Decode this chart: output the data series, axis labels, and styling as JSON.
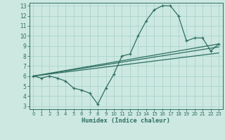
{
  "xlabel": "Humidex (Indice chaleur)",
  "bg_color": "#cce8e0",
  "line_color": "#2e6e62",
  "grid_color": "#aad4cb",
  "xlim": [
    -0.5,
    23.5
  ],
  "ylim": [
    2.7,
    13.3
  ],
  "yticks": [
    3,
    4,
    5,
    6,
    7,
    8,
    9,
    10,
    11,
    12,
    13
  ],
  "xticks": [
    0,
    1,
    2,
    3,
    4,
    5,
    6,
    7,
    8,
    9,
    10,
    11,
    12,
    13,
    14,
    15,
    16,
    17,
    18,
    19,
    20,
    21,
    22,
    23
  ],
  "series1_x": [
    0,
    1,
    2,
    3,
    4,
    5,
    6,
    7,
    8,
    9,
    10,
    11,
    12,
    13,
    14,
    15,
    16,
    17,
    18,
    19,
    20,
    21,
    22,
    23
  ],
  "series1_y": [
    6.0,
    5.8,
    6.0,
    5.8,
    5.5,
    4.8,
    4.6,
    4.3,
    3.2,
    4.8,
    6.2,
    8.0,
    8.2,
    10.0,
    11.5,
    12.6,
    13.0,
    13.0,
    12.0,
    9.5,
    9.8,
    9.8,
    8.5,
    9.2
  ],
  "series2_x": [
    0,
    23
  ],
  "series2_y": [
    6.0,
    8.3
  ],
  "series3_x": [
    0,
    23
  ],
  "series3_y": [
    6.0,
    8.9
  ],
  "series4_x": [
    0,
    23
  ],
  "series4_y": [
    6.0,
    9.2
  ]
}
